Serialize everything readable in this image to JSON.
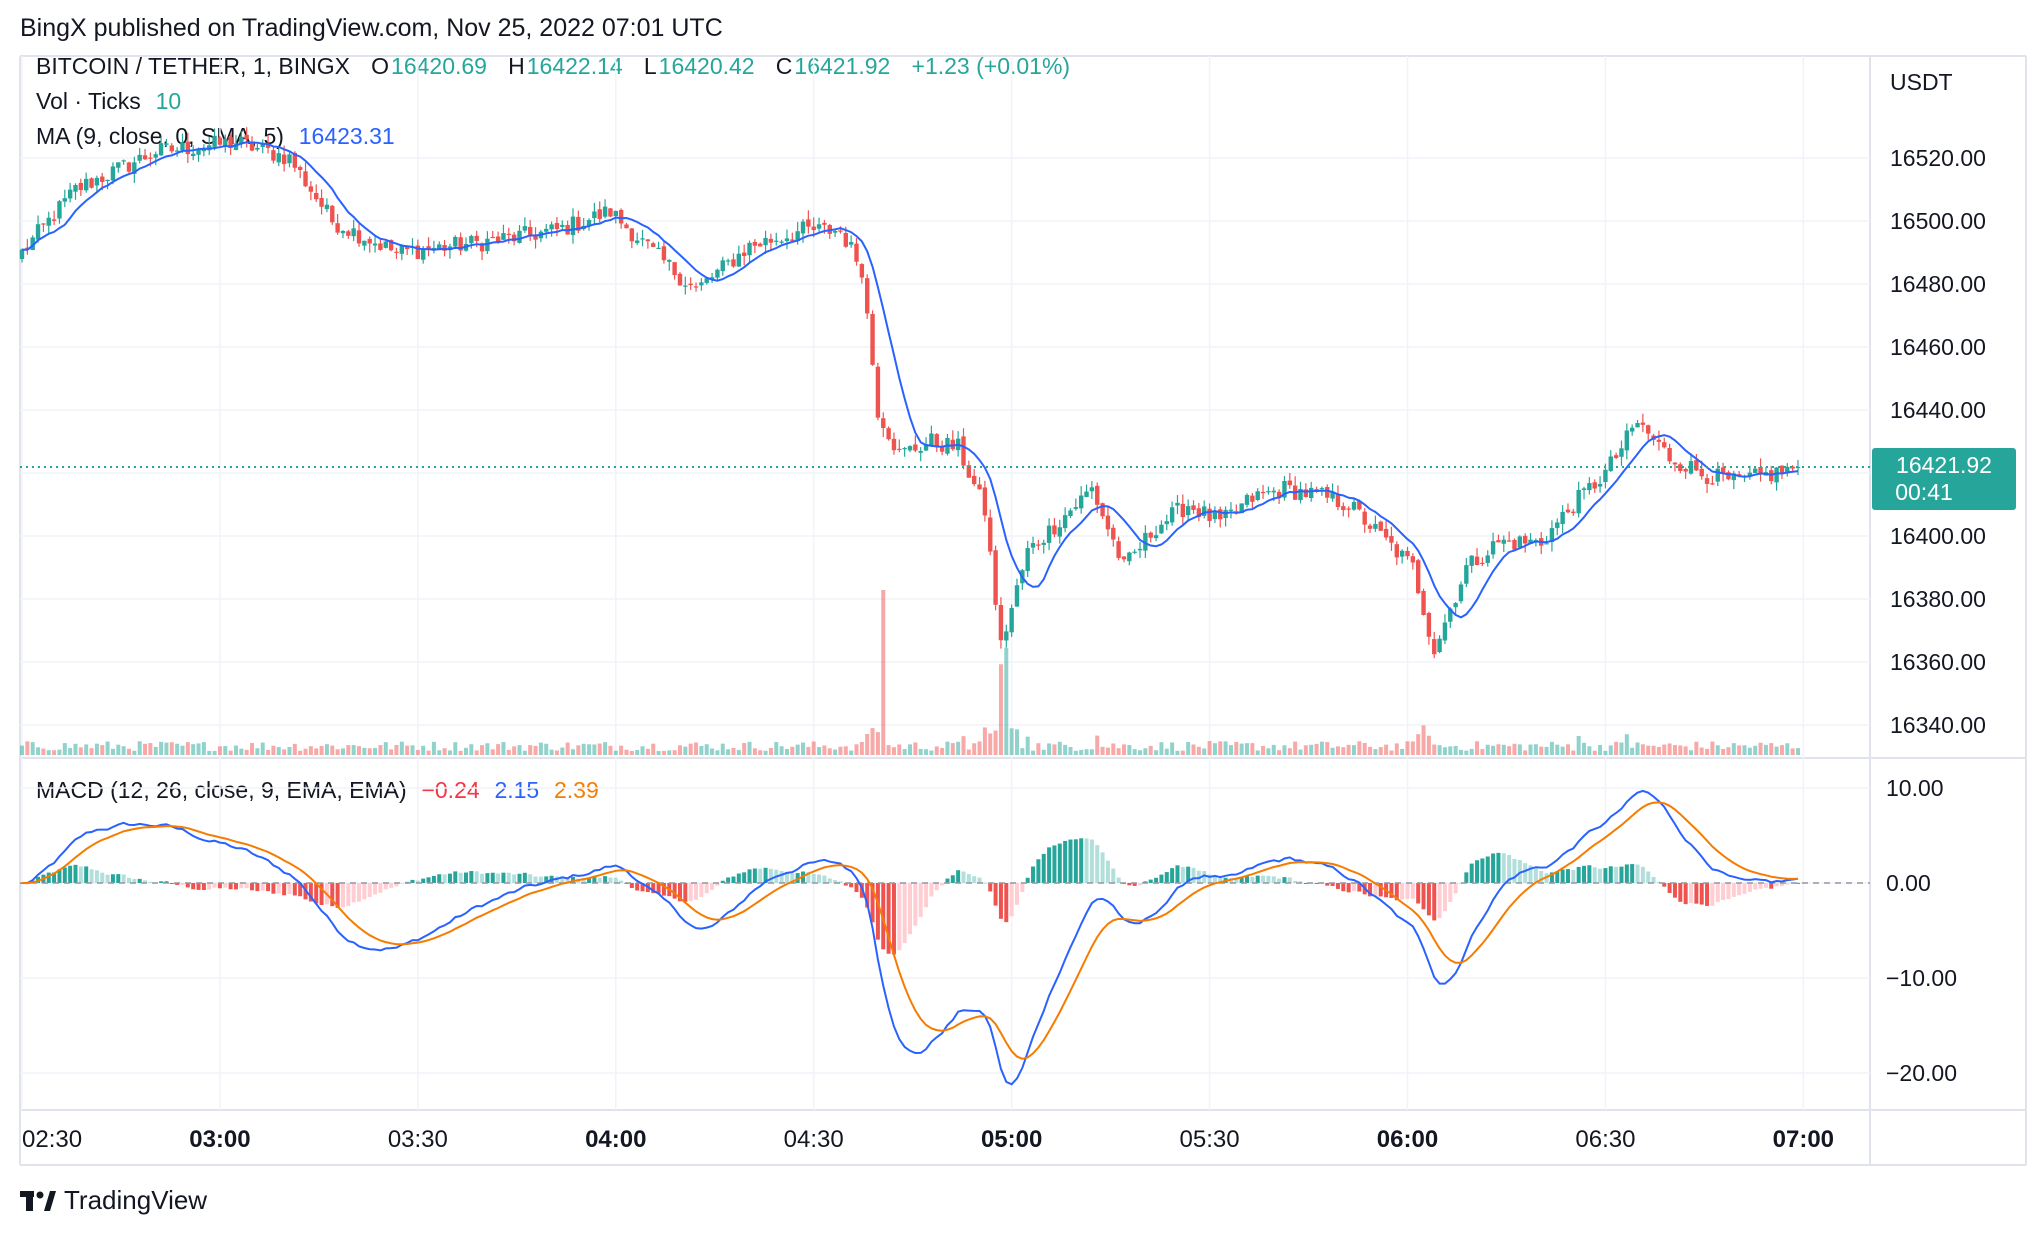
{
  "header": {
    "publisher": "BingX published on TradingView.com, Nov 25, 2022 07:01 UTC"
  },
  "legend": {
    "symbol": "BITCOIN / TETHER, 1, BINGX",
    "open_label": "O",
    "open": "16420.69",
    "high_label": "H",
    "high": "16422.14",
    "low_label": "L",
    "low": "16420.42",
    "close_label": "C",
    "close": "16421.92",
    "change": "+1.23 (+0.01%)",
    "vol_label": "Vol · Ticks",
    "vol_value": "10",
    "ma_label": "MA (9, close, 0, SMA, 5)",
    "ma_value": "16423.31",
    "macd_label": "MACD (12, 26, close, 9, EMA, EMA)",
    "macd_hist": "−0.24",
    "macd_line": "2.15",
    "macd_signal": "2.39"
  },
  "price_axis": {
    "currency": "USDT",
    "last_price": "16421.92",
    "countdown": "00:41"
  },
  "footer": {
    "brand": "TradingView",
    "logo_icon": "tradingview-logo-icon"
  },
  "colors": {
    "up": "#26a69a",
    "down": "#ef5350",
    "ma": "#2962ff",
    "macd": "#2962ff",
    "signal": "#f57c00",
    "badge": "#26a69a"
  },
  "chart_data": [
    {
      "type": "candlestick",
      "title": "BITCOIN / TETHER, 1, BINGX",
      "x": [
        "02:30",
        "03:00",
        "03:30",
        "04:00",
        "04:30",
        "05:00",
        "05:30",
        "06:00",
        "06:30",
        "07:00"
      ],
      "ylim": [
        16330,
        16550
      ],
      "yticks": [
        "16520.00",
        "16500.00",
        "16480.00",
        "16460.00",
        "16440.00",
        "16420.00",
        "16400.00",
        "16380.00",
        "16360.00",
        "16340.00"
      ],
      "keypoints_close": [
        [
          0,
          16490
        ],
        [
          10,
          16510
        ],
        [
          25,
          16522
        ],
        [
          40,
          16525
        ],
        [
          50,
          16520
        ],
        [
          58,
          16500
        ],
        [
          70,
          16490
        ],
        [
          85,
          16493
        ],
        [
          100,
          16497
        ],
        [
          110,
          16503
        ],
        [
          118,
          16490
        ],
        [
          126,
          16478
        ],
        [
          136,
          16492
        ],
        [
          146,
          16497
        ],
        [
          153,
          16497
        ],
        [
          157,
          16485
        ],
        [
          160,
          16440
        ],
        [
          164,
          16426
        ],
        [
          170,
          16430
        ],
        [
          175,
          16428
        ],
        [
          180,
          16408
        ],
        [
          183,
          16365
        ],
        [
          188,
          16395
        ],
        [
          194,
          16405
        ],
        [
          200,
          16415
        ],
        [
          206,
          16390
        ],
        [
          212,
          16403
        ],
        [
          218,
          16410
        ],
        [
          224,
          16404
        ],
        [
          230,
          16412
        ],
        [
          236,
          16415
        ],
        [
          242,
          16413
        ],
        [
          248,
          16410
        ],
        [
          254,
          16400
        ],
        [
          260,
          16390
        ],
        [
          264,
          16364
        ],
        [
          270,
          16390
        ],
        [
          276,
          16398
        ],
        [
          284,
          16398
        ],
        [
          290,
          16410
        ],
        [
          296,
          16420
        ],
        [
          302,
          16436
        ],
        [
          308,
          16425
        ],
        [
          314,
          16420
        ],
        [
          320,
          16417
        ],
        [
          328,
          16420
        ],
        [
          332,
          16421.92
        ]
      ],
      "ma_period": 9,
      "volume_spikes": [
        [
          161,
          1.0
        ],
        [
          183,
          0.55
        ],
        [
          184,
          0.65
        ]
      ]
    },
    {
      "type": "macd",
      "ylim": [
        -22,
        12
      ],
      "yticks": [
        "10.00",
        "0.00",
        "−10.00",
        "−20.00"
      ],
      "fast": 12,
      "slow": 26,
      "signal": 9
    }
  ]
}
